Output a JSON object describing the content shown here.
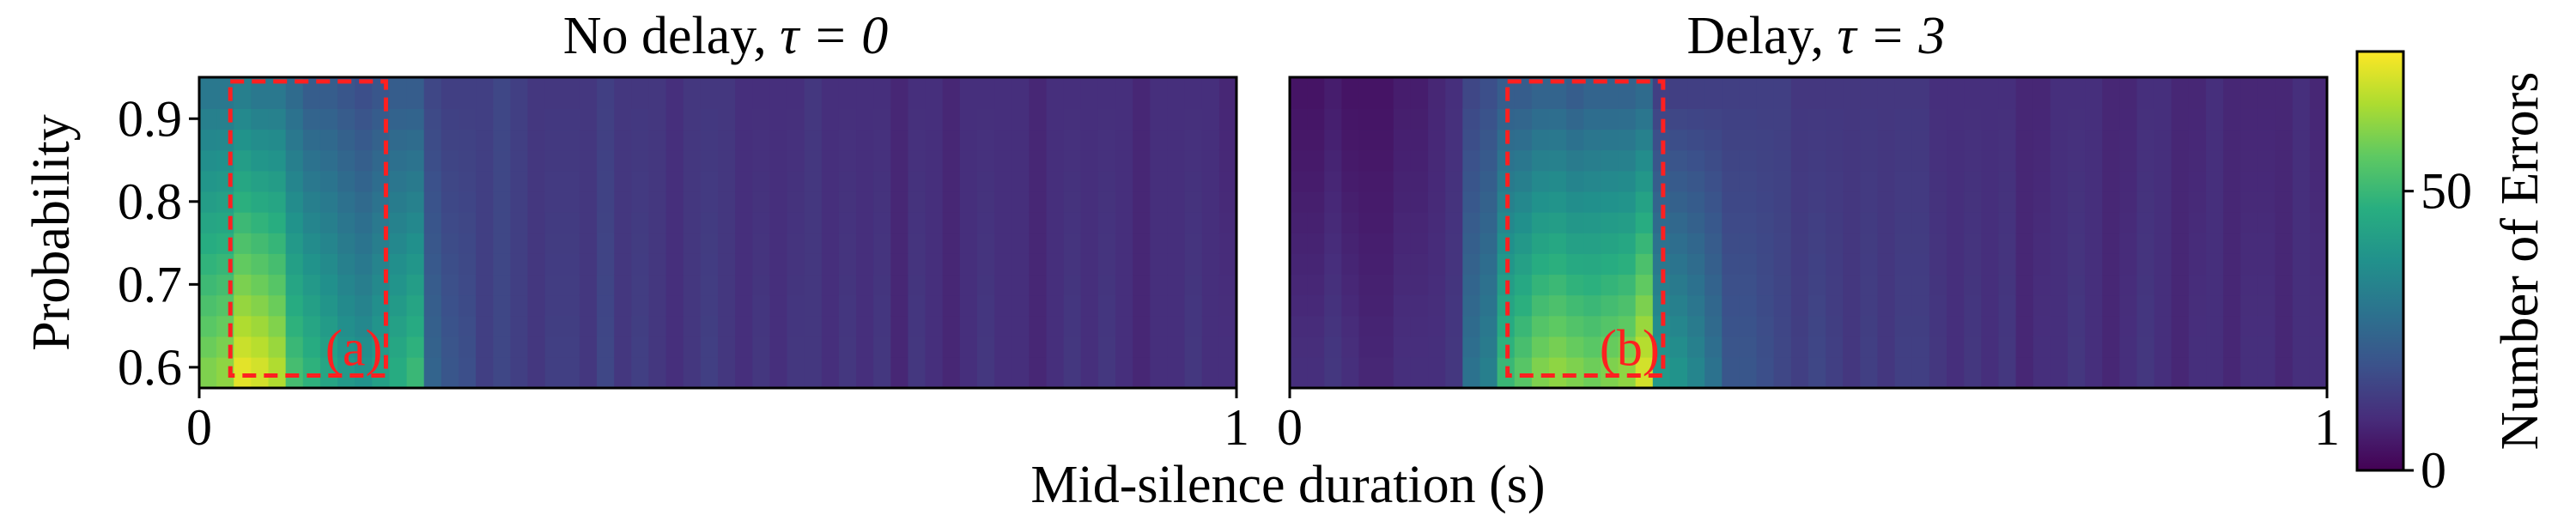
{
  "chart_data": {
    "type": "heatmap",
    "xlabel": "Mid-silence duration (s)",
    "ylabel": "Probability",
    "colorbar": {
      "label": "Number of Errors",
      "range": [
        0,
        75
      ],
      "ticks": [
        0,
        50
      ],
      "colormap": "viridis"
    },
    "grid": false,
    "panels": [
      {
        "title_text": "No delay, ",
        "title_param": "τ = 0",
        "xlim": [
          0,
          1
        ],
        "x_ticks": [
          0,
          1
        ],
        "ylim": [
          0.575,
          0.95
        ],
        "y_ticks": [
          0.6,
          0.7,
          0.8,
          0.9
        ],
        "y_rows": [
          0.6,
          0.625,
          0.65,
          0.675,
          0.7,
          0.725,
          0.75,
          0.775,
          0.8,
          0.825,
          0.85,
          0.875,
          0.9,
          0.925
        ],
        "column_errors_bottom": [
          60,
          62,
          72,
          70,
          66,
          52,
          48,
          44,
          40,
          38,
          42,
          46,
          50,
          24,
          20,
          18,
          14,
          16,
          14,
          12,
          14,
          14,
          12,
          16,
          12,
          14,
          12,
          10,
          12,
          14,
          12,
          10,
          12,
          10,
          12,
          12,
          10,
          12,
          10,
          12,
          8,
          12,
          10,
          8,
          10,
          12,
          10,
          10,
          8,
          10,
          12,
          10,
          12,
          10,
          8,
          10,
          10,
          12,
          10,
          10
        ],
        "column_errors_top": [
          30,
          30,
          32,
          30,
          30,
          26,
          22,
          22,
          20,
          18,
          20,
          22,
          22,
          16,
          14,
          14,
          14,
          16,
          14,
          12,
          12,
          12,
          12,
          14,
          12,
          12,
          12,
          10,
          12,
          12,
          12,
          10,
          10,
          10,
          10,
          12,
          10,
          10,
          10,
          10,
          8,
          10,
          10,
          8,
          10,
          10,
          10,
          10,
          8,
          10,
          10,
          10,
          10,
          10,
          8,
          10,
          10,
          10,
          10,
          8
        ],
        "annotation": {
          "label": "(a)",
          "x_range": [
            0.03,
            0.18
          ],
          "y_range": [
            0.59,
            0.945
          ]
        }
      },
      {
        "title_text": "Delay, ",
        "title_param": "τ = 3",
        "xlim": [
          0,
          1
        ],
        "x_ticks": [
          0,
          1
        ],
        "ylim": [
          0.575,
          0.95
        ],
        "y_ticks": [
          0.6,
          0.7,
          0.8,
          0.9
        ],
        "y_rows": [
          0.6,
          0.625,
          0.65,
          0.675,
          0.7,
          0.725,
          0.75,
          0.775,
          0.8,
          0.825,
          0.85,
          0.875,
          0.9,
          0.925
        ],
        "column_errors_bottom": [
          10,
          10,
          12,
          10,
          8,
          8,
          10,
          10,
          10,
          12,
          28,
          32,
          50,
          55,
          60,
          62,
          60,
          58,
          60,
          62,
          70,
          40,
          38,
          34,
          28,
          20,
          20,
          18,
          16,
          14,
          16,
          14,
          12,
          14,
          12,
          14,
          14,
          12,
          10,
          12,
          10,
          12,
          8,
          10,
          10,
          12,
          10,
          8,
          10,
          12,
          10,
          8,
          10,
          10,
          8,
          10,
          10,
          8,
          10,
          10
        ],
        "column_errors_top": [
          4,
          4,
          6,
          4,
          4,
          4,
          6,
          6,
          8,
          10,
          16,
          18,
          22,
          22,
          24,
          24,
          22,
          24,
          24,
          24,
          26,
          14,
          14,
          14,
          14,
          14,
          14,
          14,
          14,
          12,
          12,
          12,
          12,
          12,
          12,
          12,
          12,
          10,
          10,
          10,
          10,
          10,
          8,
          8,
          10,
          10,
          10,
          8,
          8,
          10,
          10,
          8,
          8,
          10,
          8,
          8,
          8,
          8,
          10,
          8
        ],
        "annotation": {
          "label": "(b)",
          "x_range": [
            0.21,
            0.36
          ],
          "y_range": [
            0.59,
            0.945
          ]
        }
      }
    ]
  }
}
